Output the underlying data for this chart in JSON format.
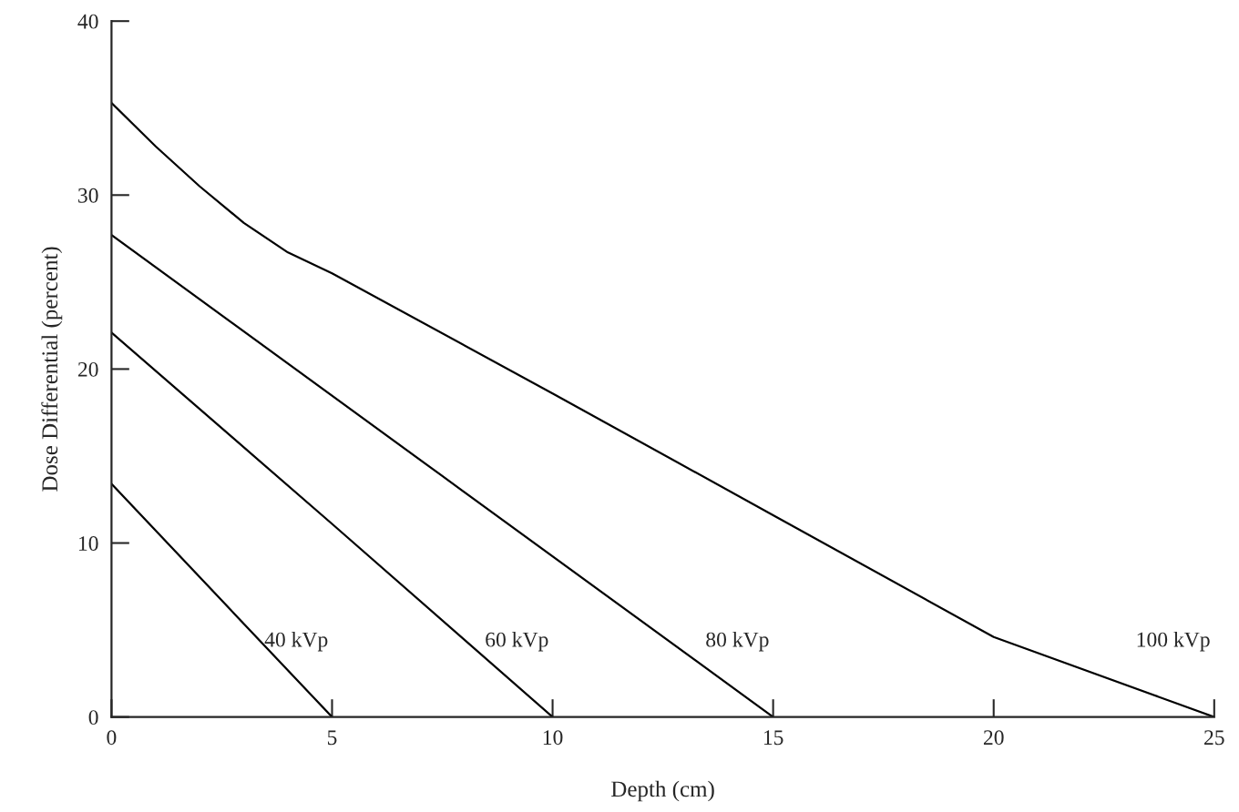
{
  "chart_data": {
    "type": "line",
    "xlabel": "Depth (cm)",
    "ylabel": "Dose Differential (percent)",
    "xlim": [
      0,
      25
    ],
    "ylim": [
      0,
      40
    ],
    "xticks": [
      0,
      5,
      10,
      15,
      20,
      25
    ],
    "yticks": [
      0,
      10,
      20,
      30,
      40
    ],
    "grid": false,
    "legend": false,
    "marker": "none",
    "line_style": "solid",
    "series": [
      {
        "name": "40 kVp",
        "color": "#000000",
        "x": [
          0,
          5
        ],
        "values": [
          13.4,
          0
        ]
      },
      {
        "name": "60 kVp",
        "color": "#000000",
        "x": [
          0,
          5,
          10
        ],
        "values": [
          22.1,
          11.1,
          0
        ]
      },
      {
        "name": "80 kVp",
        "color": "#000000",
        "x": [
          0,
          7.5,
          15
        ],
        "values": [
          27.7,
          13.85,
          0
        ]
      },
      {
        "name": "100 kVp",
        "color": "#000000",
        "x": [
          0,
          1,
          2,
          3,
          4,
          5,
          10,
          15,
          20,
          25
        ],
        "values": [
          35.3,
          32.8,
          30.5,
          28.4,
          26.7,
          25.5,
          18.6,
          11.6,
          4.6,
          0
        ]
      }
    ]
  }
}
